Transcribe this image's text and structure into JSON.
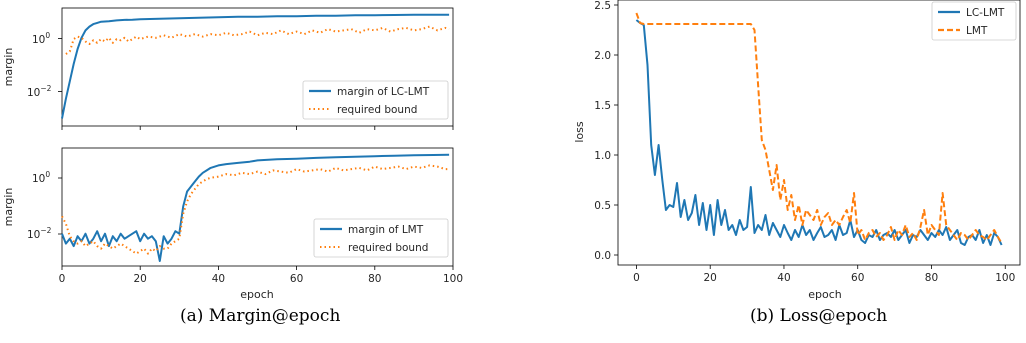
{
  "captions": {
    "a": "(a) Margin@epoch",
    "b": "(b) Loss@epoch"
  },
  "colors": {
    "blue": "#1f77b4",
    "orange": "#ff7f0e"
  },
  "chart_data": [
    {
      "id": "margin_lclmt",
      "type": "line",
      "title": "",
      "xlabel": "",
      "ylabel": "margin",
      "xlim": [
        0,
        100
      ],
      "ylim_log10": [
        -3.6,
        1.15
      ],
      "yscale": "log",
      "yticks": [
        0.01,
        1
      ],
      "ytick_labels": [
        "10^-2",
        "10^0"
      ],
      "grid": false,
      "legend": "lower-right",
      "series": [
        {
          "name": "margin of LC-LMT",
          "style": "solid",
          "x": [
            0,
            1,
            2,
            3,
            4,
            5,
            6,
            7,
            8,
            9,
            10,
            12,
            14,
            16,
            18,
            20,
            25,
            30,
            35,
            40,
            45,
            50,
            55,
            60,
            65,
            70,
            75,
            80,
            85,
            90,
            95,
            99
          ],
          "log10y": [
            -3.3,
            -2.5,
            -1.8,
            -1.1,
            -0.5,
            -0.05,
            0.25,
            0.4,
            0.5,
            0.55,
            0.6,
            0.62,
            0.65,
            0.67,
            0.68,
            0.7,
            0.72,
            0.74,
            0.76,
            0.78,
            0.8,
            0.8,
            0.82,
            0.82,
            0.84,
            0.84,
            0.86,
            0.86,
            0.87,
            0.88,
            0.88,
            0.88
          ]
        },
        {
          "name": "required bound",
          "style": "dotted",
          "x": [
            1,
            2,
            3,
            4,
            5,
            6,
            7,
            8,
            9,
            10,
            11,
            12,
            13,
            14,
            15,
            16,
            17,
            18,
            19,
            20,
            22,
            24,
            26,
            28,
            30,
            32,
            34,
            36,
            38,
            40,
            42,
            44,
            46,
            48,
            50,
            52,
            54,
            56,
            58,
            60,
            62,
            64,
            66,
            68,
            70,
            72,
            74,
            76,
            78,
            80,
            82,
            84,
            86,
            88,
            90,
            92,
            94,
            96,
            98,
            99
          ],
          "log10y": [
            -0.7,
            -0.6,
            -0.1,
            0.0,
            -0.05,
            -0.2,
            -0.3,
            -0.15,
            -0.25,
            -0.1,
            -0.2,
            -0.05,
            -0.25,
            -0.1,
            -0.15,
            -0.05,
            -0.2,
            -0.1,
            0.0,
            -0.1,
            0.0,
            -0.05,
            0.05,
            -0.05,
            0.1,
            0.0,
            0.1,
            0.0,
            0.1,
            0.05,
            0.15,
            0.05,
            0.1,
            0.2,
            0.05,
            0.15,
            0.1,
            0.25,
            0.1,
            0.2,
            0.1,
            0.25,
            0.15,
            0.3,
            0.2,
            0.25,
            0.3,
            0.15,
            0.3,
            0.25,
            0.35,
            0.2,
            0.3,
            0.35,
            0.25,
            0.3,
            0.4,
            0.25,
            0.35,
            0.3
          ]
        }
      ]
    },
    {
      "id": "margin_lmt",
      "type": "line",
      "title": "",
      "xlabel": "epoch",
      "ylabel": "margin",
      "xlim": [
        0,
        100
      ],
      "ylim_log10": [
        -3.6,
        1.15
      ],
      "yscale": "log",
      "yticks": [
        0.01,
        1
      ],
      "ytick_labels": [
        "10^-2",
        "10^0"
      ],
      "xticks": [
        0,
        20,
        40,
        60,
        80,
        100
      ],
      "grid": false,
      "legend": "lower-right",
      "series": [
        {
          "name": "margin of LMT",
          "style": "solid",
          "x": [
            0,
            1,
            2,
            3,
            4,
            5,
            6,
            7,
            8,
            9,
            10,
            11,
            12,
            13,
            14,
            15,
            16,
            17,
            18,
            19,
            20,
            21,
            22,
            23,
            24,
            25,
            26,
            27,
            28,
            29,
            30,
            31,
            32,
            33,
            34,
            35,
            36,
            37,
            38,
            40,
            42,
            45,
            48,
            50,
            55,
            60,
            65,
            70,
            75,
            80,
            85,
            90,
            95,
            99
          ],
          "log10y": [
            -2.3,
            -2.7,
            -2.5,
            -2.8,
            -2.4,
            -2.6,
            -2.3,
            -2.7,
            -2.5,
            -2.2,
            -2.6,
            -2.3,
            -2.8,
            -2.4,
            -2.6,
            -2.3,
            -2.5,
            -2.4,
            -2.3,
            -2.2,
            -2.6,
            -2.3,
            -2.5,
            -2.4,
            -2.6,
            -3.4,
            -2.4,
            -2.7,
            -2.5,
            -2.2,
            -2.3,
            -1.2,
            -0.6,
            -0.4,
            -0.2,
            0.0,
            0.15,
            0.25,
            0.35,
            0.45,
            0.5,
            0.55,
            0.6,
            0.65,
            0.7,
            0.72,
            0.75,
            0.78,
            0.8,
            0.82,
            0.84,
            0.86,
            0.87,
            0.88
          ]
        },
        {
          "name": "required bound",
          "style": "dotted",
          "x": [
            0,
            1,
            2,
            3,
            4,
            5,
            6,
            7,
            8,
            9,
            10,
            11,
            12,
            13,
            14,
            15,
            16,
            17,
            18,
            19,
            20,
            21,
            22,
            23,
            24,
            25,
            26,
            27,
            28,
            29,
            30,
            31,
            32,
            33,
            34,
            35,
            36,
            37,
            38,
            40,
            42,
            44,
            46,
            48,
            50,
            52,
            54,
            56,
            58,
            60,
            62,
            64,
            66,
            68,
            70,
            72,
            74,
            76,
            78,
            80,
            82,
            84,
            86,
            88,
            90,
            92,
            94,
            96,
            98,
            99
          ],
          "log10y": [
            -1.6,
            -1.9,
            -2.4,
            -2.6,
            -2.7,
            -2.6,
            -2.8,
            -2.7,
            -2.6,
            -2.8,
            -2.9,
            -2.7,
            -2.8,
            -2.9,
            -2.8,
            -2.7,
            -2.8,
            -2.9,
            -3.0,
            -3.1,
            -3.0,
            -2.9,
            -3.1,
            -2.9,
            -3.0,
            -2.8,
            -2.9,
            -2.9,
            -2.7,
            -2.6,
            -2.5,
            -1.5,
            -1.0,
            -0.7,
            -0.5,
            -0.3,
            -0.2,
            -0.1,
            -0.05,
            0.0,
            0.1,
            0.05,
            0.15,
            0.1,
            0.2,
            0.1,
            0.25,
            0.2,
            0.15,
            0.3,
            0.2,
            0.25,
            0.3,
            0.2,
            0.35,
            0.25,
            0.3,
            0.35,
            0.25,
            0.4,
            0.3,
            0.35,
            0.4,
            0.3,
            0.4,
            0.35,
            0.45,
            0.4,
            0.3,
            0.3
          ]
        }
      ]
    },
    {
      "id": "loss",
      "type": "line",
      "title": "",
      "xlabel": "epoch",
      "ylabel": "loss",
      "xlim": [
        -5,
        104
      ],
      "ylim": [
        -0.1,
        2.55
      ],
      "yticks": [
        0.0,
        0.5,
        1.0,
        1.5,
        2.0,
        2.5
      ],
      "xticks": [
        0,
        20,
        40,
        60,
        80,
        100
      ],
      "grid": false,
      "legend": "upper-right",
      "series": [
        {
          "name": "LC-LMT",
          "style": "solid",
          "x": [
            0,
            1,
            2,
            3,
            4,
            5,
            6,
            7,
            8,
            9,
            10,
            11,
            12,
            13,
            14,
            15,
            16,
            17,
            18,
            19,
            20,
            21,
            22,
            23,
            24,
            25,
            26,
            27,
            28,
            29,
            30,
            31,
            32,
            33,
            34,
            35,
            36,
            37,
            38,
            39,
            40,
            41,
            42,
            43,
            44,
            45,
            46,
            47,
            48,
            49,
            50,
            51,
            52,
            53,
            54,
            55,
            56,
            57,
            58,
            59,
            60,
            61,
            62,
            63,
            64,
            65,
            66,
            67,
            68,
            69,
            70,
            71,
            72,
            73,
            74,
            75,
            76,
            77,
            78,
            79,
            80,
            81,
            82,
            83,
            84,
            85,
            86,
            87,
            88,
            89,
            90,
            91,
            92,
            93,
            94,
            95,
            96,
            97,
            98,
            99
          ],
          "y": [
            2.35,
            2.32,
            2.3,
            1.9,
            1.1,
            0.8,
            1.1,
            0.75,
            0.45,
            0.5,
            0.48,
            0.72,
            0.38,
            0.55,
            0.35,
            0.42,
            0.6,
            0.3,
            0.52,
            0.25,
            0.5,
            0.2,
            0.55,
            0.3,
            0.45,
            0.25,
            0.3,
            0.2,
            0.35,
            0.25,
            0.28,
            0.68,
            0.22,
            0.3,
            0.25,
            0.4,
            0.2,
            0.32,
            0.25,
            0.18,
            0.3,
            0.22,
            0.15,
            0.25,
            0.18,
            0.3,
            0.2,
            0.25,
            0.15,
            0.22,
            0.28,
            0.18,
            0.2,
            0.25,
            0.15,
            0.3,
            0.2,
            0.22,
            0.35,
            0.18,
            0.25,
            0.15,
            0.12,
            0.2,
            0.18,
            0.25,
            0.15,
            0.2,
            0.22,
            0.18,
            0.25,
            0.15,
            0.2,
            0.25,
            0.12,
            0.2,
            0.18,
            0.25,
            0.2,
            0.15,
            0.22,
            0.18,
            0.25,
            0.2,
            0.28,
            0.15,
            0.2,
            0.25,
            0.12,
            0.1,
            0.18,
            0.2,
            0.15,
            0.25,
            0.12,
            0.2,
            0.1,
            0.22,
            0.18,
            0.1
          ]
        },
        {
          "name": "LMT",
          "style": "dashed",
          "x": [
            0,
            1,
            2,
            3,
            4,
            5,
            6,
            7,
            8,
            9,
            10,
            11,
            12,
            13,
            14,
            15,
            16,
            17,
            18,
            19,
            20,
            21,
            22,
            23,
            24,
            25,
            26,
            27,
            28,
            29,
            30,
            31,
            32,
            33,
            34,
            35,
            36,
            37,
            38,
            39,
            40,
            41,
            42,
            43,
            44,
            45,
            46,
            47,
            48,
            49,
            50,
            51,
            52,
            53,
            54,
            55,
            56,
            57,
            58,
            59,
            60,
            61,
            62,
            63,
            64,
            65,
            66,
            67,
            68,
            69,
            70,
            71,
            72,
            73,
            74,
            75,
            76,
            77,
            78,
            79,
            80,
            81,
            82,
            83,
            84,
            85,
            86,
            87,
            88,
            89,
            90,
            91,
            92,
            93,
            94,
            95,
            96,
            97,
            98,
            99
          ],
          "y": [
            2.42,
            2.32,
            2.31,
            2.31,
            2.31,
            2.31,
            2.31,
            2.31,
            2.31,
            2.31,
            2.31,
            2.31,
            2.31,
            2.31,
            2.31,
            2.31,
            2.31,
            2.31,
            2.31,
            2.31,
            2.31,
            2.31,
            2.31,
            2.31,
            2.31,
            2.31,
            2.31,
            2.31,
            2.31,
            2.31,
            2.31,
            2.31,
            2.25,
            1.7,
            1.15,
            1.05,
            0.85,
            0.65,
            0.9,
            0.55,
            0.75,
            0.45,
            0.6,
            0.35,
            0.5,
            0.3,
            0.45,
            0.4,
            0.35,
            0.45,
            0.3,
            0.38,
            0.42,
            0.3,
            0.35,
            0.3,
            0.38,
            0.45,
            0.32,
            0.62,
            0.2,
            0.25,
            0.15,
            0.22,
            0.25,
            0.18,
            0.22,
            0.15,
            0.2,
            0.28,
            0.15,
            0.25,
            0.2,
            0.3,
            0.18,
            0.22,
            0.15,
            0.28,
            0.45,
            0.2,
            0.3,
            0.25,
            0.2,
            0.62,
            0.3,
            0.25,
            0.2,
            0.15,
            0.22,
            0.2,
            0.15,
            0.2,
            0.25,
            0.2,
            0.18,
            0.15,
            0.2,
            0.25,
            0.18,
            0.12
          ]
        }
      ]
    }
  ]
}
